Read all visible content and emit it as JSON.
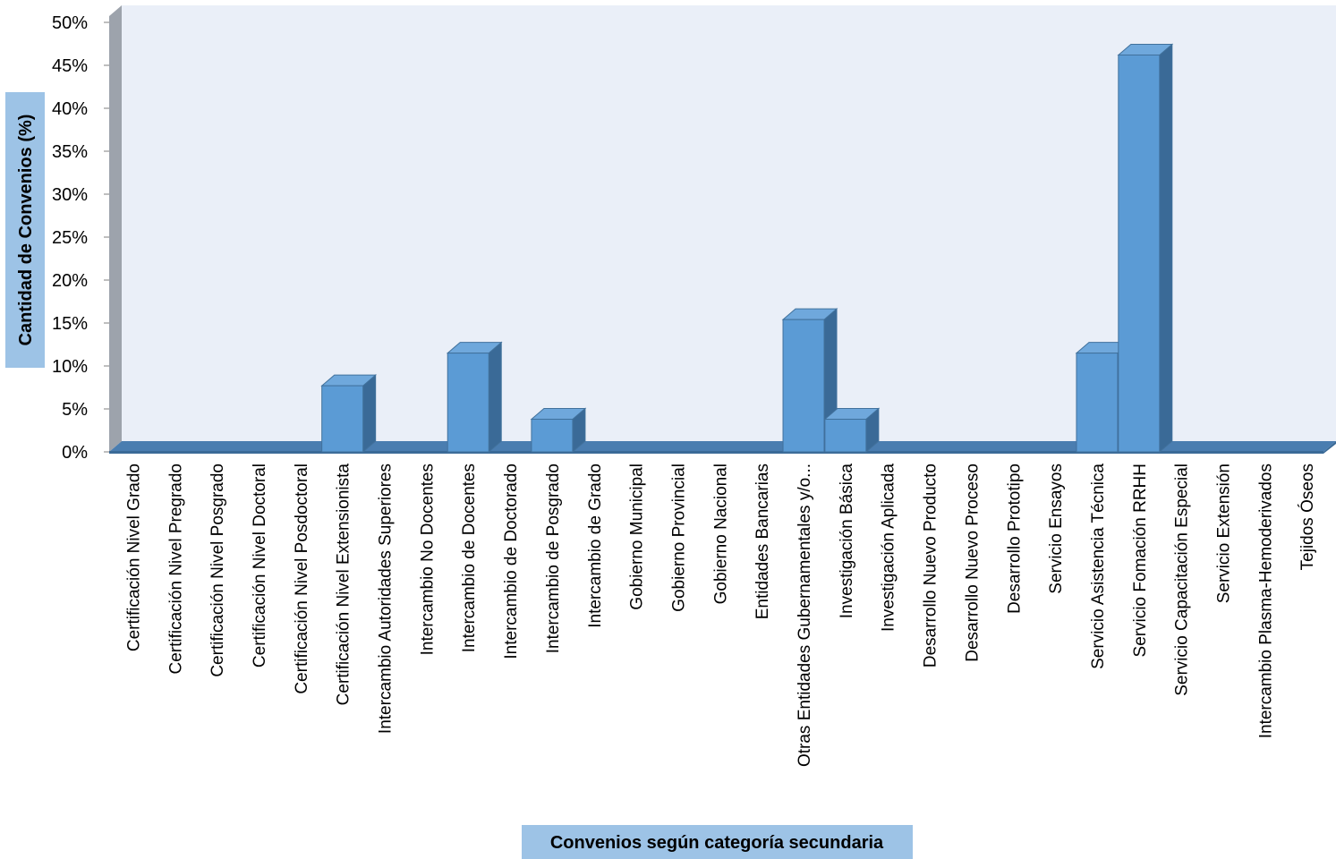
{
  "chart_data": {
    "type": "bar",
    "xlabel": "Convenios según categoría secundaria",
    "ylabel": "Cantidad de Convenios (%)",
    "ylim": [
      0,
      50
    ],
    "yticks": [
      "0%",
      "5%",
      "10%",
      "15%",
      "20%",
      "25%",
      "30%",
      "35%",
      "40%",
      "45%",
      "50%"
    ],
    "categories": [
      "Certificación Nivel Grado",
      "Certificación Nivel Pregrado",
      "Certificación Nivel Posgrado",
      "Certificación Nivel Doctoral",
      "Certificación Nivel Posdoctoral",
      "Certificación Nivel Extensionista",
      "Intercambio Autoridades Superiores",
      "Intercambio No Docentes",
      "Intercambio de Docentes",
      "Intercambio de Doctorado",
      "Intercambio de Posgrado",
      "Intercambio de Grado",
      "Gobierno Municipal",
      "Gobierno Provincial",
      "Gobierno Nacional",
      "Entidades Bancarias",
      "Otras Entidades Gubernamentales y/o...",
      "Investigación Básica",
      "Investigación Aplicada",
      "Desarrollo Nuevo Producto",
      "Desarrollo Nuevo Proceso",
      "Desarrollo Prototipo",
      "Servicio Ensayos",
      "Servicio Asistencia Técnica",
      "Servicio Fomación RRHH",
      "Servicio Capacitación Especial",
      "Servicio Extensión",
      "Intercambio Plasma-Hemoderivados",
      "Tejidos Óseos"
    ],
    "values": [
      0,
      0,
      0,
      0,
      0,
      7.7,
      0,
      0,
      11.5,
      0,
      3.8,
      0,
      0,
      0,
      0,
      0,
      15.4,
      3.8,
      0,
      0,
      0,
      0,
      0,
      11.5,
      46.2,
      0,
      0,
      0,
      0
    ],
    "grid": false,
    "legend": "none",
    "colors": {
      "bar_front": "#5B9BD5",
      "bar_side": "#3A6A97",
      "bar_top": "#6FA8DC",
      "bar_stroke": "#41719C",
      "plot_back": "#EAEFF8",
      "left_wall": "#9DA3AC",
      "floor": "#4A7DB0",
      "label_box": "#9DC3E6"
    }
  }
}
